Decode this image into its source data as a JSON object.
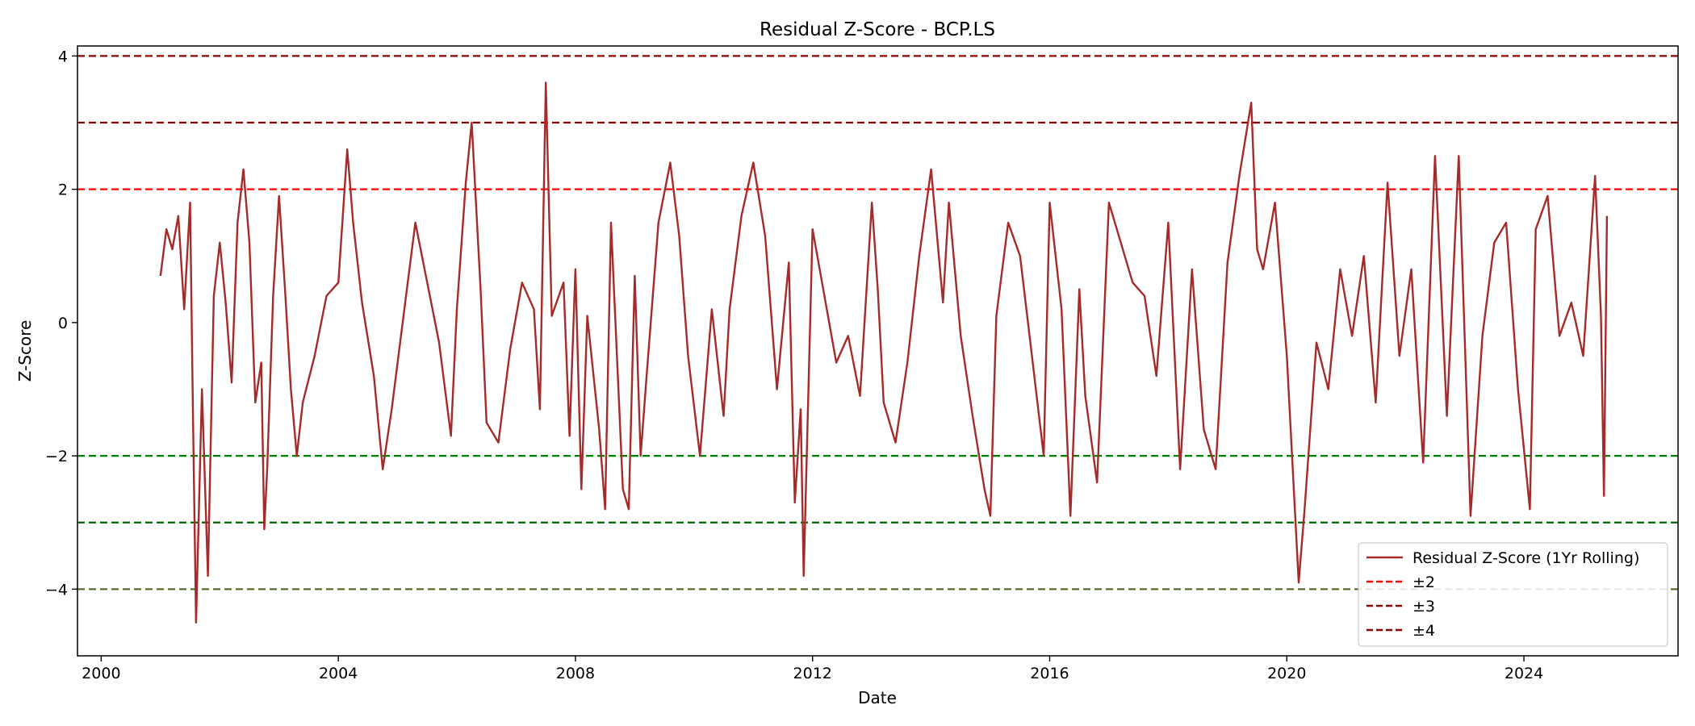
{
  "chart_data": {
    "type": "line",
    "title": "Residual Z-Score - BCP.LS",
    "xlabel": "Date",
    "ylabel": "Z-Score",
    "xlim": [
      1999.6,
      2026.6
    ],
    "ylim": [
      -5,
      4.15
    ],
    "x_ticks": [
      2000,
      2004,
      2008,
      2012,
      2016,
      2020,
      2024
    ],
    "x_tick_labels": [
      "2000",
      "2004",
      "2008",
      "2012",
      "2016",
      "2020",
      "2024"
    ],
    "y_ticks": [
      4,
      2,
      0,
      -2,
      -4
    ],
    "y_tick_labels": [
      "4",
      "2",
      "0",
      "−2",
      "−4"
    ],
    "grid": false,
    "legend_position": "lower-right",
    "series": [
      {
        "name": "Residual Z-Score (1Yr Rolling)",
        "color": "#a52a2a",
        "x": [
          2001.0,
          2001.1,
          2001.2,
          2001.3,
          2001.4,
          2001.5,
          2001.55,
          2001.6,
          2001.7,
          2001.8,
          2001.9,
          2002.0,
          2002.1,
          2002.2,
          2002.3,
          2002.4,
          2002.5,
          2002.6,
          2002.7,
          2002.75,
          2002.8,
          2002.9,
          2003.0,
          2003.1,
          2003.2,
          2003.3,
          2003.4,
          2003.6,
          2003.8,
          2004.0,
          2004.15,
          2004.25,
          2004.4,
          2004.6,
          2004.75,
          2004.9,
          2005.1,
          2005.3,
          2005.5,
          2005.7,
          2005.9,
          2006.0,
          2006.15,
          2006.25,
          2006.4,
          2006.5,
          2006.7,
          2006.9,
          2007.1,
          2007.3,
          2007.4,
          2007.5,
          2007.6,
          2007.8,
          2007.9,
          2008.0,
          2008.1,
          2008.2,
          2008.4,
          2008.5,
          2008.6,
          2008.8,
          2008.9,
          2009.0,
          2009.1,
          2009.2,
          2009.4,
          2009.6,
          2009.75,
          2009.9,
          2010.1,
          2010.3,
          2010.5,
          2010.6,
          2010.8,
          2011.0,
          2011.2,
          2011.4,
          2011.6,
          2011.7,
          2011.8,
          2011.85,
          2012.0,
          2012.2,
          2012.4,
          2012.6,
          2012.8,
          2013.0,
          2013.1,
          2013.2,
          2013.4,
          2013.6,
          2013.8,
          2014.0,
          2014.2,
          2014.3,
          2014.5,
          2014.7,
          2014.9,
          2015.0,
          2015.1,
          2015.3,
          2015.5,
          2015.7,
          2015.9,
          2016.0,
          2016.2,
          2016.35,
          2016.5,
          2016.6,
          2016.8,
          2017.0,
          2017.2,
          2017.4,
          2017.6,
          2017.8,
          2018.0,
          2018.2,
          2018.4,
          2018.6,
          2018.8,
          2019.0,
          2019.2,
          2019.4,
          2019.5,
          2019.6,
          2019.8,
          2020.0,
          2020.2,
          2020.3,
          2020.5,
          2020.7,
          2020.9,
          2021.1,
          2021.3,
          2021.5,
          2021.7,
          2021.9,
          2022.1,
          2022.3,
          2022.5,
          2022.7,
          2022.9,
          2023.1,
          2023.3,
          2023.5,
          2023.7,
          2023.9,
          2024.1,
          2024.2,
          2024.4,
          2024.6,
          2024.8,
          2025.0,
          2025.2,
          2025.3,
          2025.35,
          2025.4
        ],
        "values": [
          0.7,
          1.4,
          1.1,
          1.6,
          0.2,
          1.8,
          -1.5,
          -4.5,
          -1.0,
          -3.8,
          0.4,
          1.2,
          0.3,
          -0.9,
          1.5,
          2.3,
          1.2,
          -1.2,
          -0.6,
          -3.1,
          -2.2,
          0.4,
          1.9,
          0.5,
          -1.0,
          -2.0,
          -1.2,
          -0.5,
          0.4,
          0.6,
          2.6,
          1.5,
          0.3,
          -0.8,
          -2.2,
          -1.3,
          0.1,
          1.5,
          0.6,
          -0.3,
          -1.7,
          0.2,
          2.1,
          3.0,
          0.5,
          -1.5,
          -1.8,
          -0.4,
          0.6,
          0.2,
          -1.3,
          3.6,
          0.1,
          0.6,
          -1.7,
          0.8,
          -2.5,
          0.1,
          -1.6,
          -2.8,
          1.5,
          -2.5,
          -2.8,
          0.7,
          -2.0,
          -0.8,
          1.5,
          2.4,
          1.3,
          -0.5,
          -2.0,
          0.2,
          -1.4,
          0.2,
          1.6,
          2.4,
          1.3,
          -1.0,
          0.9,
          -2.7,
          -1.3,
          -3.8,
          1.4,
          0.4,
          -0.6,
          -0.2,
          -1.1,
          1.8,
          0.5,
          -1.2,
          -1.8,
          -0.6,
          1.0,
          2.3,
          0.3,
          1.8,
          -0.2,
          -1.4,
          -2.5,
          -2.9,
          0.1,
          1.5,
          1.0,
          -0.5,
          -2.0,
          1.8,
          0.2,
          -2.9,
          0.5,
          -1.1,
          -2.4,
          1.8,
          1.2,
          0.6,
          0.4,
          -0.8,
          1.5,
          -2.2,
          0.8,
          -1.6,
          -2.2,
          0.9,
          2.2,
          3.3,
          1.1,
          0.8,
          1.8,
          -0.5,
          -3.9,
          -2.8,
          -0.3,
          -1.0,
          0.8,
          -0.2,
          1.0,
          -1.2,
          2.1,
          -0.5,
          0.8,
          -2.1,
          2.5,
          -1.4,
          2.5,
          -2.9,
          -0.2,
          1.2,
          1.5,
          -1.0,
          -2.8,
          1.4,
          1.9,
          -0.2,
          0.3,
          -0.5,
          2.2,
          0.1,
          -2.6,
          1.6
        ]
      },
      {
        "name": "±2",
        "color": "#ff0000",
        "style": "dashed",
        "values": [
          2,
          -2
        ]
      },
      {
        "name": "±3",
        "color": "#8b0000",
        "style": "dashed",
        "values": [
          3,
          -3
        ]
      },
      {
        "name": "±4",
        "color": "#8b0000",
        "style": "dashed",
        "values": [
          4,
          -4
        ]
      }
    ],
    "threshold_lines": [
      {
        "y": 4,
        "color": "#8b0000"
      },
      {
        "y": 3,
        "color": "#8b0000"
      },
      {
        "y": 2,
        "color": "#ff0000"
      },
      {
        "y": -2,
        "color": "#008000"
      },
      {
        "y": -3,
        "color": "#006400"
      },
      {
        "y": -4,
        "color": "#556b2f"
      }
    ]
  }
}
